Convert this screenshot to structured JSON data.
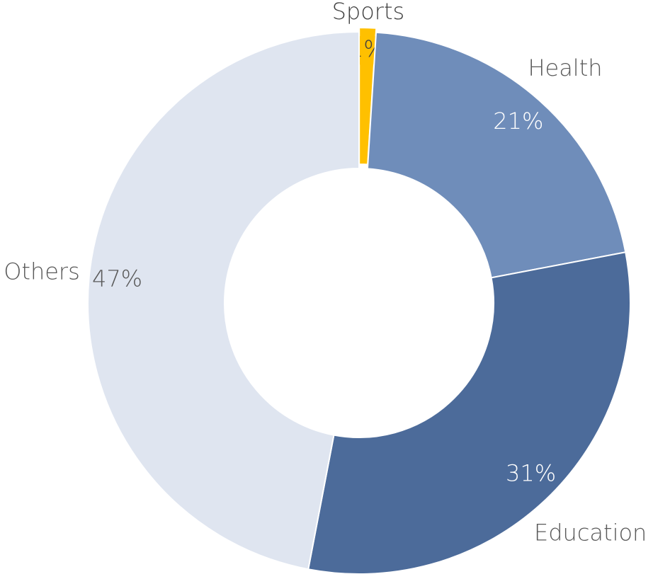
{
  "chart_data": {
    "type": "donut",
    "categories": [
      "Sports",
      "Health",
      "Education",
      "Others"
    ],
    "values": [
      1,
      21,
      31,
      47
    ],
    "value_labels": [
      "1%",
      "21%",
      "31%",
      "47%"
    ],
    "colors": [
      "#ffc000",
      "#6f8dba",
      "#4c6b9a",
      "#dfe5f0"
    ]
  }
}
